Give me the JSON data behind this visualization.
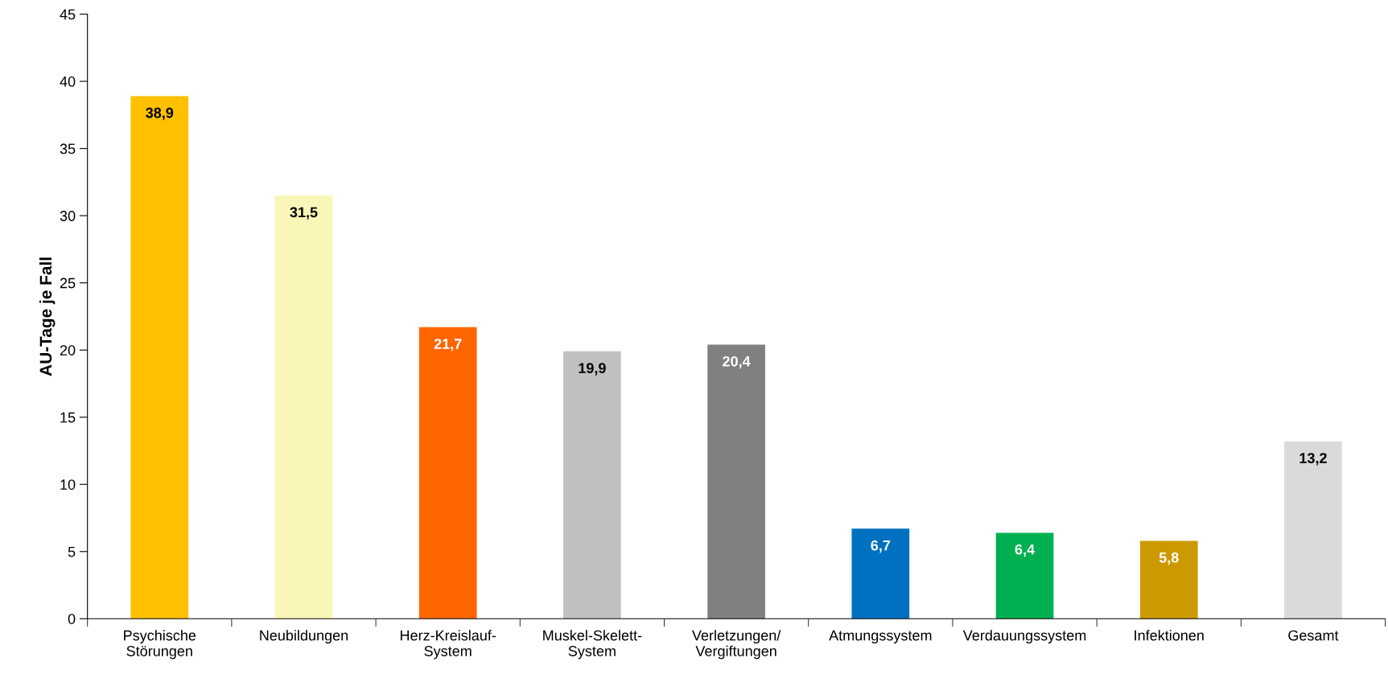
{
  "chart_data": {
    "type": "bar",
    "ylabel": "AU-Tage je Fall",
    "categories": [
      "Psychische\nStörungen",
      "Neubildungen",
      "Herz-Kreislauf-\nSystem",
      "Muskel-Skelett-\nSystem",
      "Verletzungen/\nVergiftungen",
      "Atmungssystem",
      "Verdauungssystem",
      "Infektionen",
      "Gesamt"
    ],
    "values": [
      38.9,
      31.5,
      21.7,
      19.9,
      20.4,
      6.7,
      6.4,
      5.8,
      13.2
    ],
    "colors": [
      "#ffc000",
      "#faf6b8",
      "#ff6600",
      "#c0c0c0",
      "#808080",
      "#0070c0",
      "#00b050",
      "#cc9900",
      "#dadada"
    ],
    "value_labels": [
      "38,9",
      "31,5",
      "21,7",
      "19,9",
      "20,4",
      "6,7",
      "6,4",
      "5,8",
      "13,2"
    ],
    "ylim": [
      0,
      45
    ],
    "yticks": [
      0,
      5,
      10,
      15,
      20,
      25,
      30,
      35,
      40,
      45
    ],
    "grid": false,
    "legend": false
  }
}
